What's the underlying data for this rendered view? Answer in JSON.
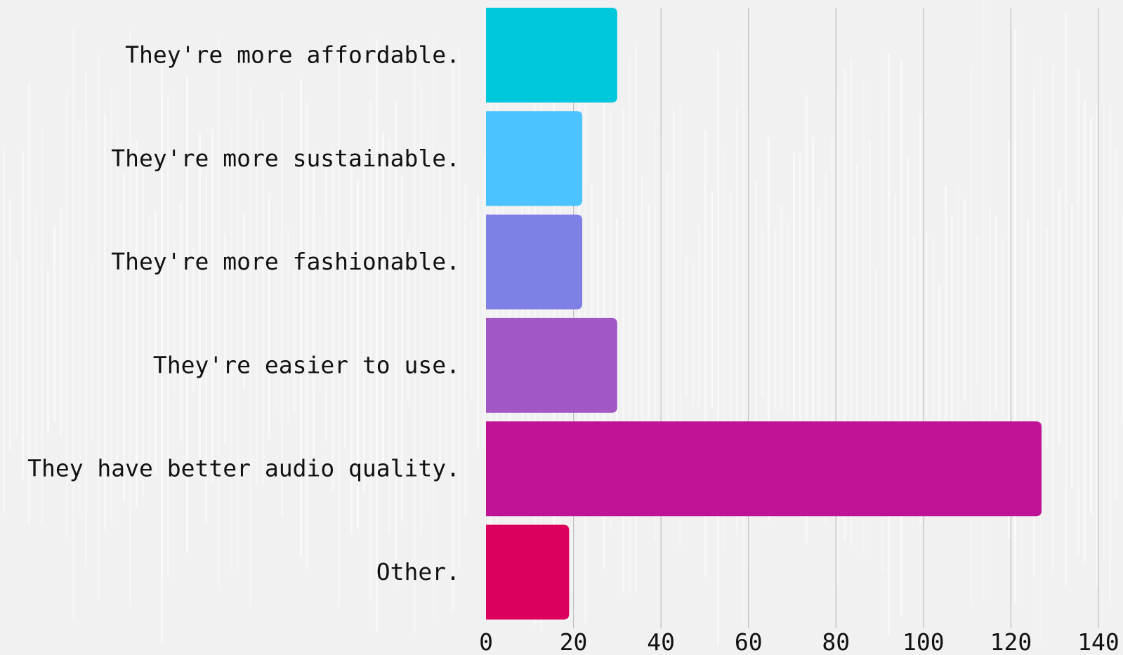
{
  "chart_data": {
    "type": "bar",
    "orientation": "horizontal",
    "categories": [
      "They're more affordable.",
      "They're more sustainable.",
      "They're more fashionable.",
      "They're easier to use.",
      "They have better audio quality.",
      "Other."
    ],
    "values": [
      30,
      22,
      22,
      30,
      127,
      19
    ],
    "colors": [
      "#00c8dc",
      "#4cc3ff",
      "#7f80e6",
      "#a157c4",
      "#be1394",
      "#dc005c"
    ],
    "xlim": [
      0,
      140
    ],
    "xticks": [
      "0",
      "20",
      "40",
      "60",
      "80",
      "100",
      "120",
      "140"
    ],
    "grid": true,
    "title": "",
    "xlabel": "",
    "ylabel": ""
  }
}
